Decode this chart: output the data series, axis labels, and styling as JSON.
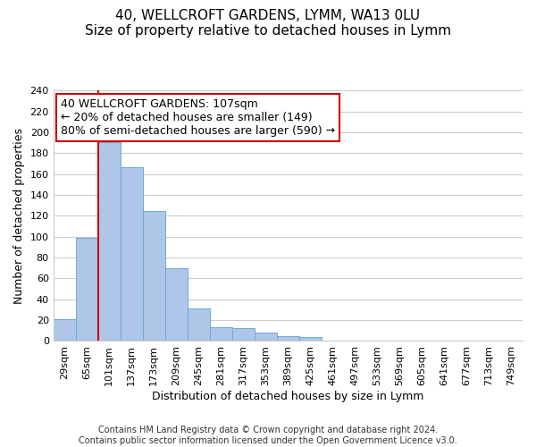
{
  "title": "40, WELLCROFT GARDENS, LYMM, WA13 0LU",
  "subtitle": "Size of property relative to detached houses in Lymm",
  "xlabel": "Distribution of detached houses by size in Lymm",
  "ylabel": "Number of detached properties",
  "bar_labels": [
    "29sqm",
    "65sqm",
    "101sqm",
    "137sqm",
    "173sqm",
    "209sqm",
    "245sqm",
    "281sqm",
    "317sqm",
    "353sqm",
    "389sqm",
    "425sqm",
    "461sqm",
    "497sqm",
    "533sqm",
    "569sqm",
    "605sqm",
    "641sqm",
    "677sqm",
    "713sqm",
    "749sqm"
  ],
  "bar_values": [
    21,
    99,
    191,
    167,
    125,
    70,
    31,
    13,
    12,
    8,
    5,
    4,
    0,
    0,
    0,
    0,
    0,
    0,
    0,
    0,
    0
  ],
  "bar_color": "#aec6e8",
  "bar_edge_color": "#6aaad4",
  "vline_color": "#cc0000",
  "vline_x_index": 2,
  "ylim": [
    0,
    240
  ],
  "yticks": [
    0,
    20,
    40,
    60,
    80,
    100,
    120,
    140,
    160,
    180,
    200,
    220,
    240
  ],
  "annotation_title": "40 WELLCROFT GARDENS: 107sqm",
  "annotation_line1": "← 20% of detached houses are smaller (149)",
  "annotation_line2": "80% of semi-detached houses are larger (590) →",
  "footer1": "Contains HM Land Registry data © Crown copyright and database right 2024.",
  "footer2": "Contains public sector information licensed under the Open Government Licence v3.0.",
  "background_color": "#ffffff",
  "grid_color": "#cccccc",
  "title_fontsize": 11,
  "subtitle_fontsize": 10,
  "axis_label_fontsize": 9,
  "tick_fontsize": 8,
  "annotation_fontsize": 9,
  "footer_fontsize": 7
}
